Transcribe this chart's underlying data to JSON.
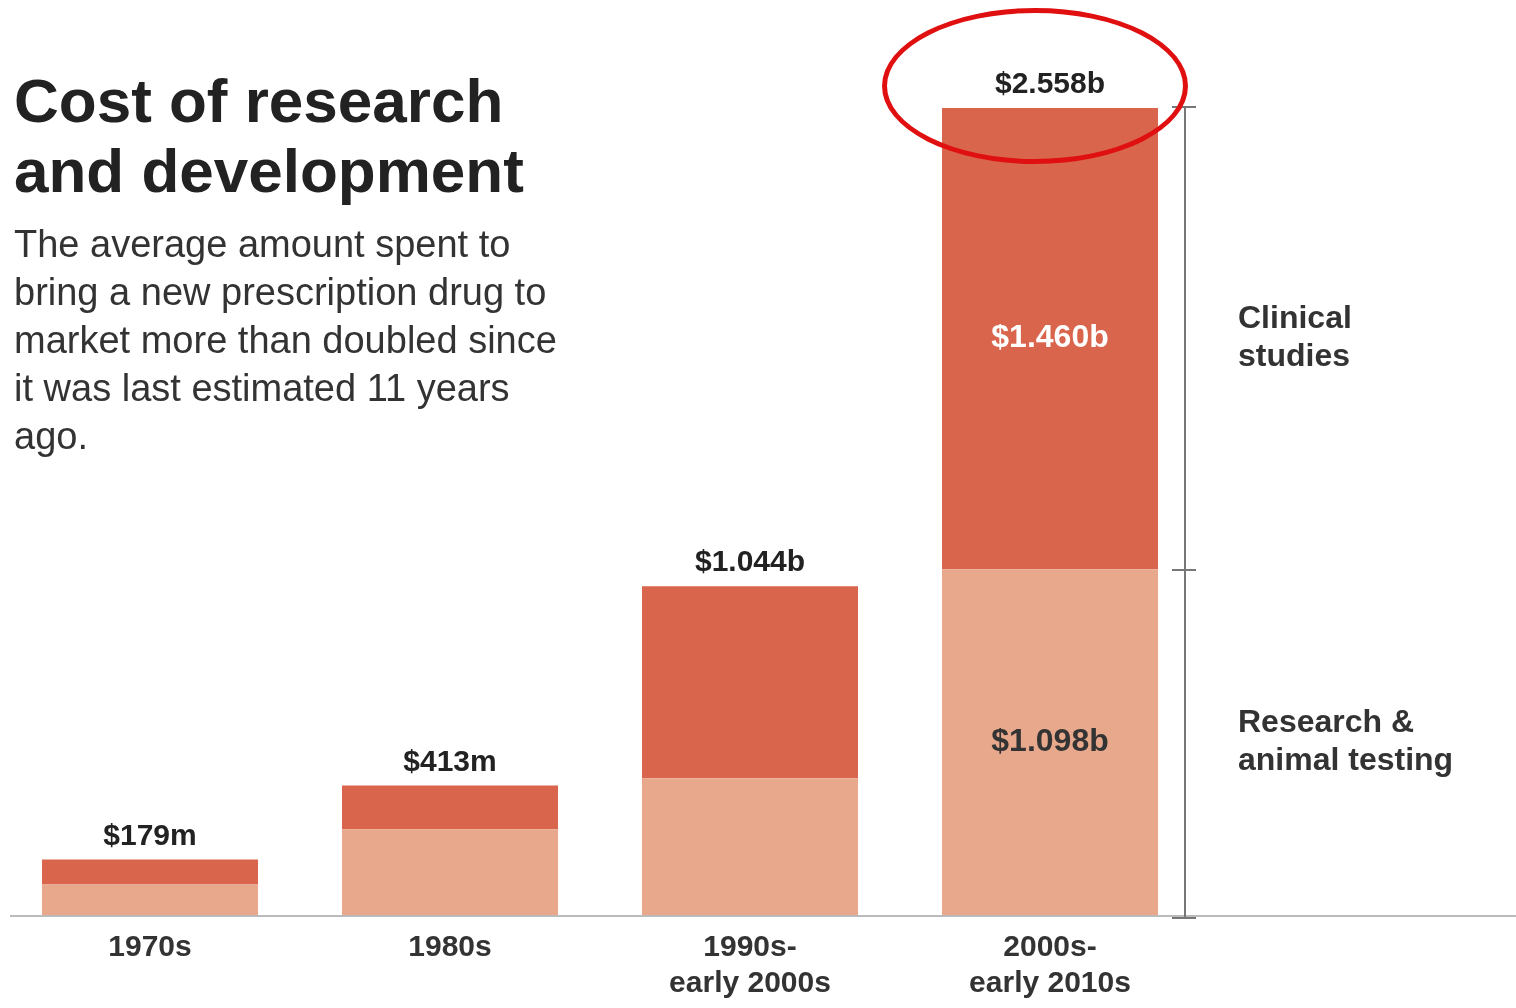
{
  "chart_data": {
    "type": "bar",
    "title": "Cost of research and development",
    "subtitle": "The average amount spent to bring a new prescription drug to market more than doubled since it was last estimated 11 years ago.",
    "categories": [
      "1970s",
      "1980s",
      "1990s- early 2000s",
      "2000s- early 2010s"
    ],
    "stacked": true,
    "series": [
      {
        "name": "Research & animal testing",
        "color": "#e8a88c",
        "values": [
          0.1,
          0.275,
          0.436,
          1.098
        ],
        "value_labels": [
          null,
          null,
          null,
          "$1.098b"
        ]
      },
      {
        "name": "Clinical studies",
        "color": "#d9654c",
        "values": [
          0.079,
          0.138,
          0.608,
          1.46
        ],
        "value_labels": [
          null,
          null,
          null,
          "$1.460b"
        ]
      }
    ],
    "totals": [
      "$179m",
      "$413m",
      "$1.044b",
      "$2.558b"
    ],
    "legend": false
  }
}
